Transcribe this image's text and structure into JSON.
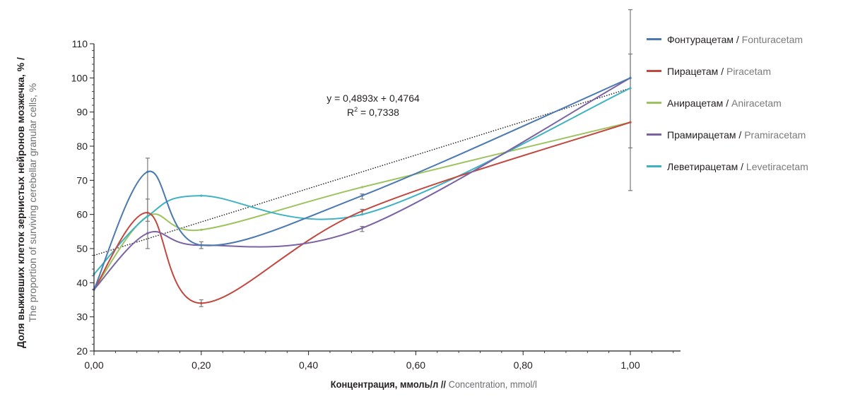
{
  "chart_data": {
    "type": "line",
    "x": [
      0.0,
      0.1,
      0.2,
      0.5,
      1.0
    ],
    "x_tick_labels": [
      "0,00",
      "0,20",
      "0,40",
      "0,60",
      "0,80",
      "1,00"
    ],
    "x_ticks": [
      0.0,
      0.2,
      0.4,
      0.6,
      0.8,
      1.0
    ],
    "y_ticks": [
      20,
      30,
      40,
      50,
      60,
      70,
      80,
      90,
      100,
      110
    ],
    "xlim": [
      0.0,
      1.1
    ],
    "ylim": [
      20,
      110
    ],
    "xlabel_ru": "Концентрация, ммоль/л //",
    "xlabel_en": "Concentration, mmol/l",
    "ylabel_ru": "Доля выживших клеток зернистых нейронов мозжечка, % /",
    "ylabel_en": "The proportion of surviving cerebellar granular cells, %",
    "smooth": true,
    "series": [
      {
        "name_ru": "Фонтурацетам",
        "name_en": "Fonturacetam",
        "color": "#4a78b0",
        "values": [
          38,
          72.5,
          51,
          65.5,
          100
        ]
      },
      {
        "name_ru": "Пирацетам",
        "name_en": "Piracetam",
        "color": "#c2473e",
        "values": [
          38,
          60.5,
          34,
          61,
          87
        ]
      },
      {
        "name_ru": "Анирацетам",
        "name_en": "Aniracetam",
        "color": "#9dc35f",
        "values": [
          38,
          59.5,
          55.5,
          68,
          87
        ]
      },
      {
        "name_ru": "Прамирацетам",
        "name_en": "Pramiracetam",
        "color": "#7b62a3",
        "values": [
          38,
          54.5,
          51,
          56,
          100
        ]
      },
      {
        "name_ru": "Леветирацетам",
        "name_en": "Levetiracetam",
        "color": "#3fb2c2",
        "values": [
          42.5,
          59.5,
          65.5,
          60,
          97
        ]
      }
    ],
    "error_bars": [
      {
        "x": 0.1,
        "low": 50,
        "high": 76.5
      },
      {
        "x": 0.1,
        "low": 58,
        "high": 64.5
      },
      {
        "x": 0.2,
        "low": 50,
        "high": 52
      },
      {
        "x": 0.2,
        "low": 33,
        "high": 35
      },
      {
        "x": 0.5,
        "low": 55,
        "high": 56.5
      },
      {
        "x": 0.5,
        "low": 60,
        "high": 61.5
      },
      {
        "x": 0.5,
        "low": 64.5,
        "high": 66
      },
      {
        "x": 1.0,
        "low": 67,
        "high": 120
      },
      {
        "x": 1.0,
        "low": 79.5,
        "high": 107
      }
    ],
    "trendline": {
      "slope": 0.4893,
      "intercept": 0.4764,
      "color": "#1a1a1a",
      "style": "dotted",
      "y_start": 48,
      "y_end": 97,
      "equation": "y = 0,4893x + 0,4764",
      "r2_prefix": "R",
      "r2_sup": "2",
      "r2_value": " = 0,7338"
    },
    "legend_position": "right"
  }
}
